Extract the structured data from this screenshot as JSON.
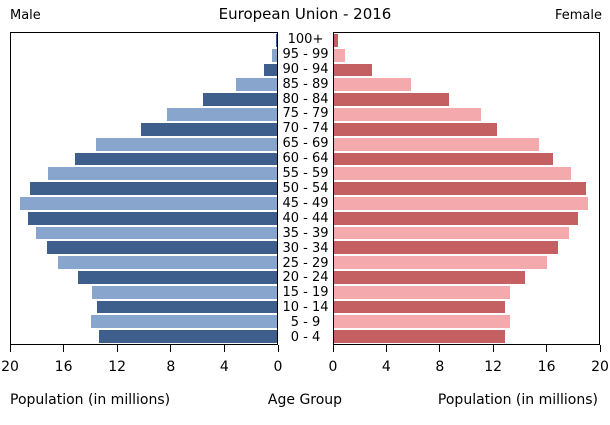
{
  "title": "European Union - 2016",
  "headers": {
    "male": "Male",
    "female": "Female"
  },
  "captions": {
    "left": "Population (in millions)",
    "center": "Age Group",
    "right": "Population (in millions)"
  },
  "colors": {
    "male_dark": "#3E5F8C",
    "male_light": "#88A6CD",
    "female_dark": "#C45F62",
    "female_light": "#F4A9AD",
    "axis": "#000000",
    "background": "#FFFFFF"
  },
  "chart_data": {
    "type": "bar",
    "subtype": "population-pyramid",
    "orientation": "horizontal",
    "title": "European Union - 2016",
    "xlabel": "Population (in millions)",
    "ylabel": "Age Group",
    "xlim": [
      0,
      20
    ],
    "grid": false,
    "x_ticks_male": [
      20,
      16,
      12,
      8,
      4,
      0
    ],
    "x_ticks_female": [
      0,
      4,
      8,
      12,
      16,
      20
    ],
    "age_groups": [
      "100+",
      "95 - 99",
      "90 - 94",
      "85 - 89",
      "80 - 84",
      "75 - 79",
      "70 - 74",
      "65 - 69",
      "60 - 64",
      "55 - 59",
      "50 - 54",
      "45 - 49",
      "40 - 44",
      "35 - 39",
      "30 - 34",
      "25 - 29",
      "20 - 24",
      "15 - 19",
      "10 - 14",
      "5 - 9",
      "0 - 4"
    ],
    "series": [
      {
        "name": "Male",
        "values": [
          0.1,
          0.4,
          1.0,
          3.1,
          5.6,
          8.3,
          10.2,
          13.6,
          15.2,
          17.2,
          18.6,
          19.3,
          18.7,
          18.1,
          17.3,
          16.5,
          15.0,
          13.9,
          13.5,
          14.0,
          13.4
        ]
      },
      {
        "name": "Female",
        "values": [
          0.3,
          0.8,
          2.9,
          5.8,
          8.7,
          11.1,
          12.3,
          15.5,
          16.5,
          17.9,
          19.0,
          19.2,
          18.4,
          17.7,
          16.9,
          16.1,
          14.4,
          13.3,
          12.9,
          13.3,
          12.9
        ]
      }
    ]
  }
}
